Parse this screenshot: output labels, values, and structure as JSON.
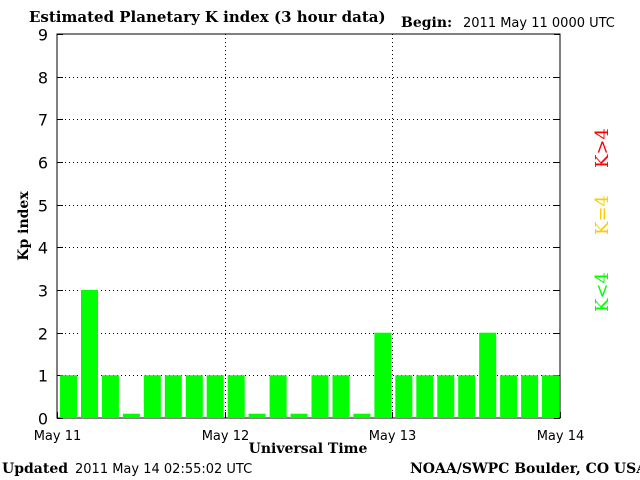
{
  "header": {
    "title": "Estimated Planetary K index (3 hour data)",
    "begin_label": "Begin:",
    "begin_value": "2011 May 11 0000 UTC"
  },
  "footer": {
    "updated_label": "Updated",
    "updated_value": "2011 May 14 02:55:02 UTC",
    "credit": "NOAA/SWPC Boulder, CO USA"
  },
  "legend": {
    "items": [
      {
        "label": "K<4",
        "color": "#00ff00"
      },
      {
        "label": "K=4",
        "color": "#ffcc00"
      },
      {
        "label": "K>4",
        "color": "#ff0000"
      }
    ]
  },
  "colors": {
    "bar_low": "#00ff00",
    "bar_equal": "#ffcc00",
    "bar_high": "#ff0000"
  },
  "chart_data": {
    "type": "bar",
    "title": "Estimated Planetary K index (3 hour data)",
    "xlabel": "Universal Time",
    "ylabel": "Kp index",
    "ylim": [
      0,
      9
    ],
    "yticks": [
      "0",
      "1",
      "2",
      "3",
      "4",
      "5",
      "6",
      "7",
      "8",
      "9"
    ],
    "xtick_labels": [
      "May 11",
      "May 12",
      "May 13",
      "May 14"
    ],
    "grid": true,
    "categories": [
      "May 11 00",
      "May 11 03",
      "May 11 06",
      "May 11 09",
      "May 11 12",
      "May 11 15",
      "May 11 18",
      "May 11 21",
      "May 12 00",
      "May 12 03",
      "May 12 06",
      "May 12 09",
      "May 12 12",
      "May 12 15",
      "May 12 18",
      "May 12 21",
      "May 13 00",
      "May 13 03",
      "May 13 06",
      "May 13 09",
      "May 13 12",
      "May 13 15",
      "May 13 18",
      "May 13 21"
    ],
    "values": [
      1,
      3,
      1,
      0.1,
      1,
      1,
      1,
      1,
      1,
      0.1,
      1,
      0.1,
      1,
      1,
      0.1,
      2,
      1,
      1,
      1,
      1,
      2,
      1,
      1,
      1
    ]
  }
}
